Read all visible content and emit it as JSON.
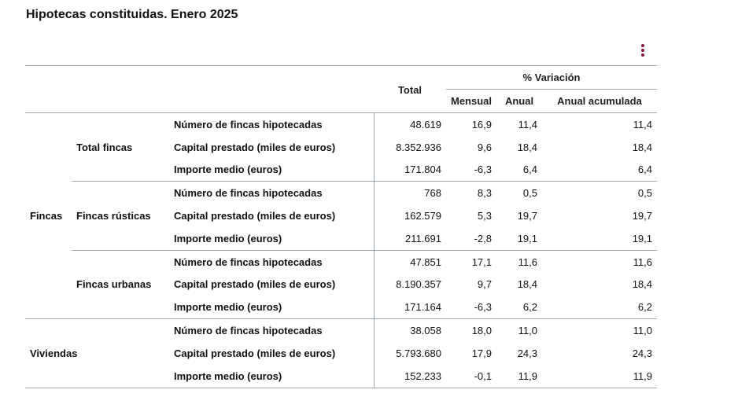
{
  "title": "Hipotecas constituidas. Enero 2025",
  "menu_icon": "vertical-dots-icon",
  "accent_color": "#8a1538",
  "header": {
    "total": "Total",
    "variation": "% Variación",
    "mensual": "Mensual",
    "anual": "Anual",
    "anual_acumulada": "Anual acumulada"
  },
  "groups": {
    "fincas": "Fincas",
    "viviendas": "Viviendas",
    "total_fincas": "Total fincas",
    "fincas_rusticas": "Fincas rústicas",
    "fincas_urbanas": "Fincas urbanas"
  },
  "rows": [
    {
      "label": "Número de fincas hipotecadas",
      "total": "48.619",
      "mensual": "16,9",
      "anual": "11,4",
      "acum": "11,4"
    },
    {
      "label": "Capital prestado (miles de euros)",
      "total": "8.352.936",
      "mensual": "9,6",
      "anual": "18,4",
      "acum": "18,4"
    },
    {
      "label": "Importe medio (euros)",
      "total": "171.804",
      "mensual": "-6,3",
      "anual": "6,4",
      "acum": "6,4"
    },
    {
      "label": "Número de fincas hipotecadas",
      "total": "768",
      "mensual": "8,3",
      "anual": "0,5",
      "acum": "0,5"
    },
    {
      "label": "Capital prestado (miles de euros)",
      "total": "162.579",
      "mensual": "5,3",
      "anual": "19,7",
      "acum": "19,7"
    },
    {
      "label": "Importe medio (euros)",
      "total": "211.691",
      "mensual": "-2,8",
      "anual": "19,1",
      "acum": "19,1"
    },
    {
      "label": "Número de fincas hipotecadas",
      "total": "47.851",
      "mensual": "17,1",
      "anual": "11,6",
      "acum": "11,6"
    },
    {
      "label": "Capital prestado (miles de euros)",
      "total": "8.190.357",
      "mensual": "9,7",
      "anual": "18,4",
      "acum": "18,4"
    },
    {
      "label": "Importe medio (euros)",
      "total": "171.164",
      "mensual": "-6,3",
      "anual": "6,2",
      "acum": "6,2"
    },
    {
      "label": "Número de fincas hipotecadas",
      "total": "38.058",
      "mensual": "18,0",
      "anual": "11,0",
      "acum": "11,0"
    },
    {
      "label": "Capital prestado (miles de euros)",
      "total": "5.793.680",
      "mensual": "17,9",
      "anual": "24,3",
      "acum": "24,3"
    },
    {
      "label": "Importe medio (euros)",
      "total": "152.233",
      "mensual": "-0,1",
      "anual": "11,9",
      "acum": "11,9"
    }
  ]
}
